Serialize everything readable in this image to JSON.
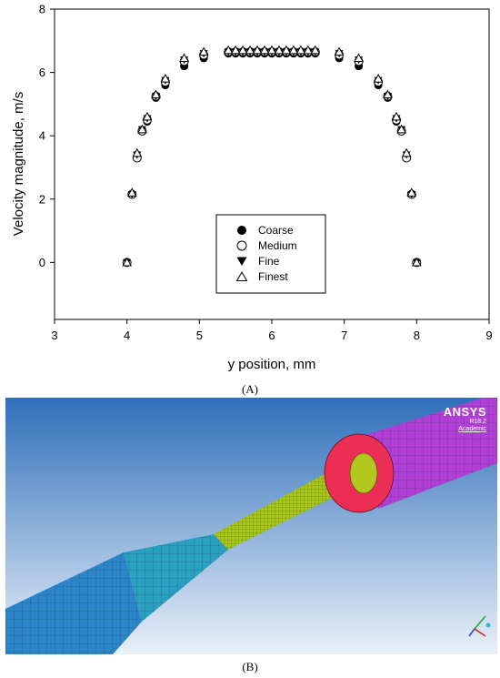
{
  "chart_data": {
    "type": "scatter",
    "xlabel": "y position, mm",
    "ylabel": "Velocity magnitude, m/s",
    "xlim": [
      3,
      9
    ],
    "ylim": [
      -1.8,
      8
    ],
    "xticks": [
      "3",
      "4",
      "5",
      "6",
      "7",
      "8",
      "9"
    ],
    "yticks": [
      "0",
      "2",
      "4",
      "6",
      "8"
    ],
    "grid": false,
    "legend_position": "center-bottom",
    "series": [
      {
        "name": "Coarse",
        "marker": "filled-circle",
        "x": [
          4.0,
          4.07,
          4.14,
          4.21,
          4.28,
          4.4,
          4.53,
          4.79,
          5.06,
          5.4,
          5.5,
          5.6,
          5.7,
          5.8,
          5.9,
          6.0,
          6.1,
          6.2,
          6.3,
          6.4,
          6.5,
          6.6,
          6.93,
          7.2,
          7.47,
          7.6,
          7.72,
          7.79,
          7.86,
          7.93,
          8.0
        ],
        "y": [
          0,
          2.15,
          3.35,
          4.15,
          4.45,
          5.2,
          5.6,
          6.2,
          6.45,
          6.6,
          6.6,
          6.6,
          6.6,
          6.6,
          6.6,
          6.6,
          6.6,
          6.6,
          6.6,
          6.6,
          6.6,
          6.6,
          6.45,
          6.2,
          5.6,
          5.2,
          4.45,
          4.15,
          3.35,
          2.15,
          0
        ]
      },
      {
        "name": "Medium",
        "marker": "open-circle",
        "x": [
          4.0,
          4.07,
          4.14,
          4.21,
          4.28,
          4.4,
          4.53,
          4.79,
          5.06,
          5.4,
          5.5,
          5.6,
          5.7,
          5.8,
          5.9,
          6.0,
          6.1,
          6.2,
          6.3,
          6.4,
          6.5,
          6.6,
          6.93,
          7.2,
          7.47,
          7.6,
          7.72,
          7.79,
          7.86,
          7.93,
          8.0
        ],
        "y": [
          0,
          2.15,
          3.3,
          4.15,
          4.5,
          5.25,
          5.7,
          6.35,
          6.55,
          6.65,
          6.65,
          6.65,
          6.65,
          6.65,
          6.65,
          6.65,
          6.65,
          6.65,
          6.65,
          6.65,
          6.65,
          6.65,
          6.55,
          6.35,
          5.7,
          5.25,
          4.5,
          4.15,
          3.3,
          2.15,
          0
        ]
      },
      {
        "name": "Fine",
        "marker": "filled-triangle-down",
        "x": [
          4.0,
          4.07,
          4.14,
          4.21,
          4.28,
          4.4,
          4.53,
          4.79,
          5.06,
          5.4,
          5.5,
          5.6,
          5.7,
          5.8,
          5.9,
          6.0,
          6.1,
          6.2,
          6.3,
          6.4,
          6.5,
          6.6,
          6.93,
          7.2,
          7.47,
          7.6,
          7.72,
          7.79,
          7.86,
          7.93,
          8.0
        ],
        "y": [
          0,
          2.15,
          3.4,
          4.2,
          4.55,
          5.25,
          5.75,
          6.4,
          6.6,
          6.65,
          6.65,
          6.65,
          6.65,
          6.65,
          6.65,
          6.65,
          6.65,
          6.65,
          6.65,
          6.65,
          6.65,
          6.65,
          6.6,
          6.4,
          5.75,
          5.25,
          4.55,
          4.2,
          3.4,
          2.15,
          0
        ]
      },
      {
        "name": "Finest",
        "marker": "open-triangle-up",
        "x": [
          4.0,
          4.07,
          4.14,
          4.21,
          4.28,
          4.4,
          4.53,
          4.79,
          5.06,
          5.4,
          5.5,
          5.6,
          5.7,
          5.8,
          5.9,
          6.0,
          6.1,
          6.2,
          6.3,
          6.4,
          6.5,
          6.6,
          6.93,
          7.2,
          7.47,
          7.6,
          7.72,
          7.79,
          7.86,
          7.93,
          8.0
        ],
        "y": [
          0,
          2.2,
          3.45,
          4.2,
          4.6,
          5.3,
          5.8,
          6.45,
          6.65,
          6.7,
          6.7,
          6.7,
          6.7,
          6.7,
          6.7,
          6.7,
          6.7,
          6.7,
          6.7,
          6.7,
          6.7,
          6.7,
          6.65,
          6.45,
          5.8,
          5.3,
          4.6,
          4.2,
          3.45,
          2.2,
          0
        ]
      }
    ]
  },
  "captions": {
    "a": "(A)",
    "b": "(B)"
  },
  "mesh_panel": {
    "logo_name": "ANSYS",
    "logo_version": "R18.2",
    "logo_edition": "Academic",
    "colors": {
      "background_top": "#2f6fb9",
      "background_bottom": "#e9f0f9",
      "inlet_tube": "#2b85c6",
      "taper": "#2aa0c0",
      "throat": "#a8c51a",
      "outlet_tube": "#b13fd6",
      "outlet_face": "#ea2e54"
    }
  }
}
